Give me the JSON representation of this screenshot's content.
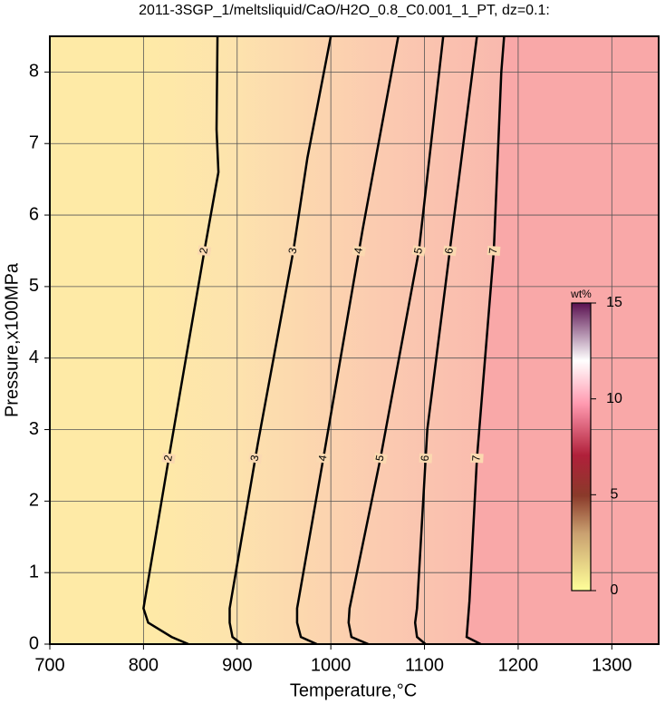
{
  "chart_data": {
    "type": "contour",
    "title": "2011-3SGP_1/meltsliquid/CaO/H2O_0.8_C0.001_1_PT, dz=0.1:",
    "x_label": "Temperature,°C",
    "y_label": "Pressure,x100MPa",
    "xlim": [
      700,
      1350
    ],
    "ylim": [
      0,
      8.5
    ],
    "xticks": [
      700,
      800,
      900,
      1000,
      1100,
      1200,
      1300
    ],
    "yticks": [
      0,
      1,
      2,
      3,
      4,
      5,
      6,
      7,
      8
    ],
    "grid": true,
    "contours": [
      {
        "level": 2,
        "x": [
          848,
          830,
          805,
          800,
          827,
          865,
          880,
          878,
          879
        ],
        "y": [
          0,
          0.1,
          0.3,
          0.5,
          2.6,
          5.5,
          6.6,
          7.2,
          8.5
        ]
      },
      {
        "level": 3,
        "x": [
          905,
          895,
          892,
          892,
          922,
          960,
          975,
          1000
        ],
        "y": [
          0,
          0.1,
          0.3,
          0.5,
          2.8,
          5.5,
          6.8,
          8.5
        ]
      },
      {
        "level": 4,
        "x": [
          985,
          968,
          964,
          964,
          994,
          1034,
          1072
        ],
        "y": [
          0,
          0.1,
          0.3,
          0.5,
          2.75,
          5.8,
          8.5
        ]
      },
      {
        "level": 5,
        "x": [
          1040,
          1022,
          1019,
          1020,
          1053,
          1094,
          1120
        ],
        "y": [
          0,
          0.1,
          0.3,
          0.5,
          2.6,
          5.5,
          8.5
        ]
      },
      {
        "level": 6,
        "x": [
          1101,
          1092,
          1090,
          1092,
          1103,
          1127,
          1156
        ],
        "y": [
          0,
          0.1,
          0.3,
          0.5,
          3.0,
          5.5,
          8.5
        ]
      },
      {
        "level": 7,
        "x": [
          1160,
          1145,
          1148,
          1156,
          1174,
          1182,
          1185
        ],
        "y": [
          0,
          0.1,
          0.6,
          2.6,
          5.5,
          8.0,
          8.5
        ]
      }
    ],
    "colorbar": {
      "label": "wt%",
      "lim": [
        0,
        15
      ],
      "ticks": [
        0,
        5,
        10,
        15
      ]
    }
  }
}
